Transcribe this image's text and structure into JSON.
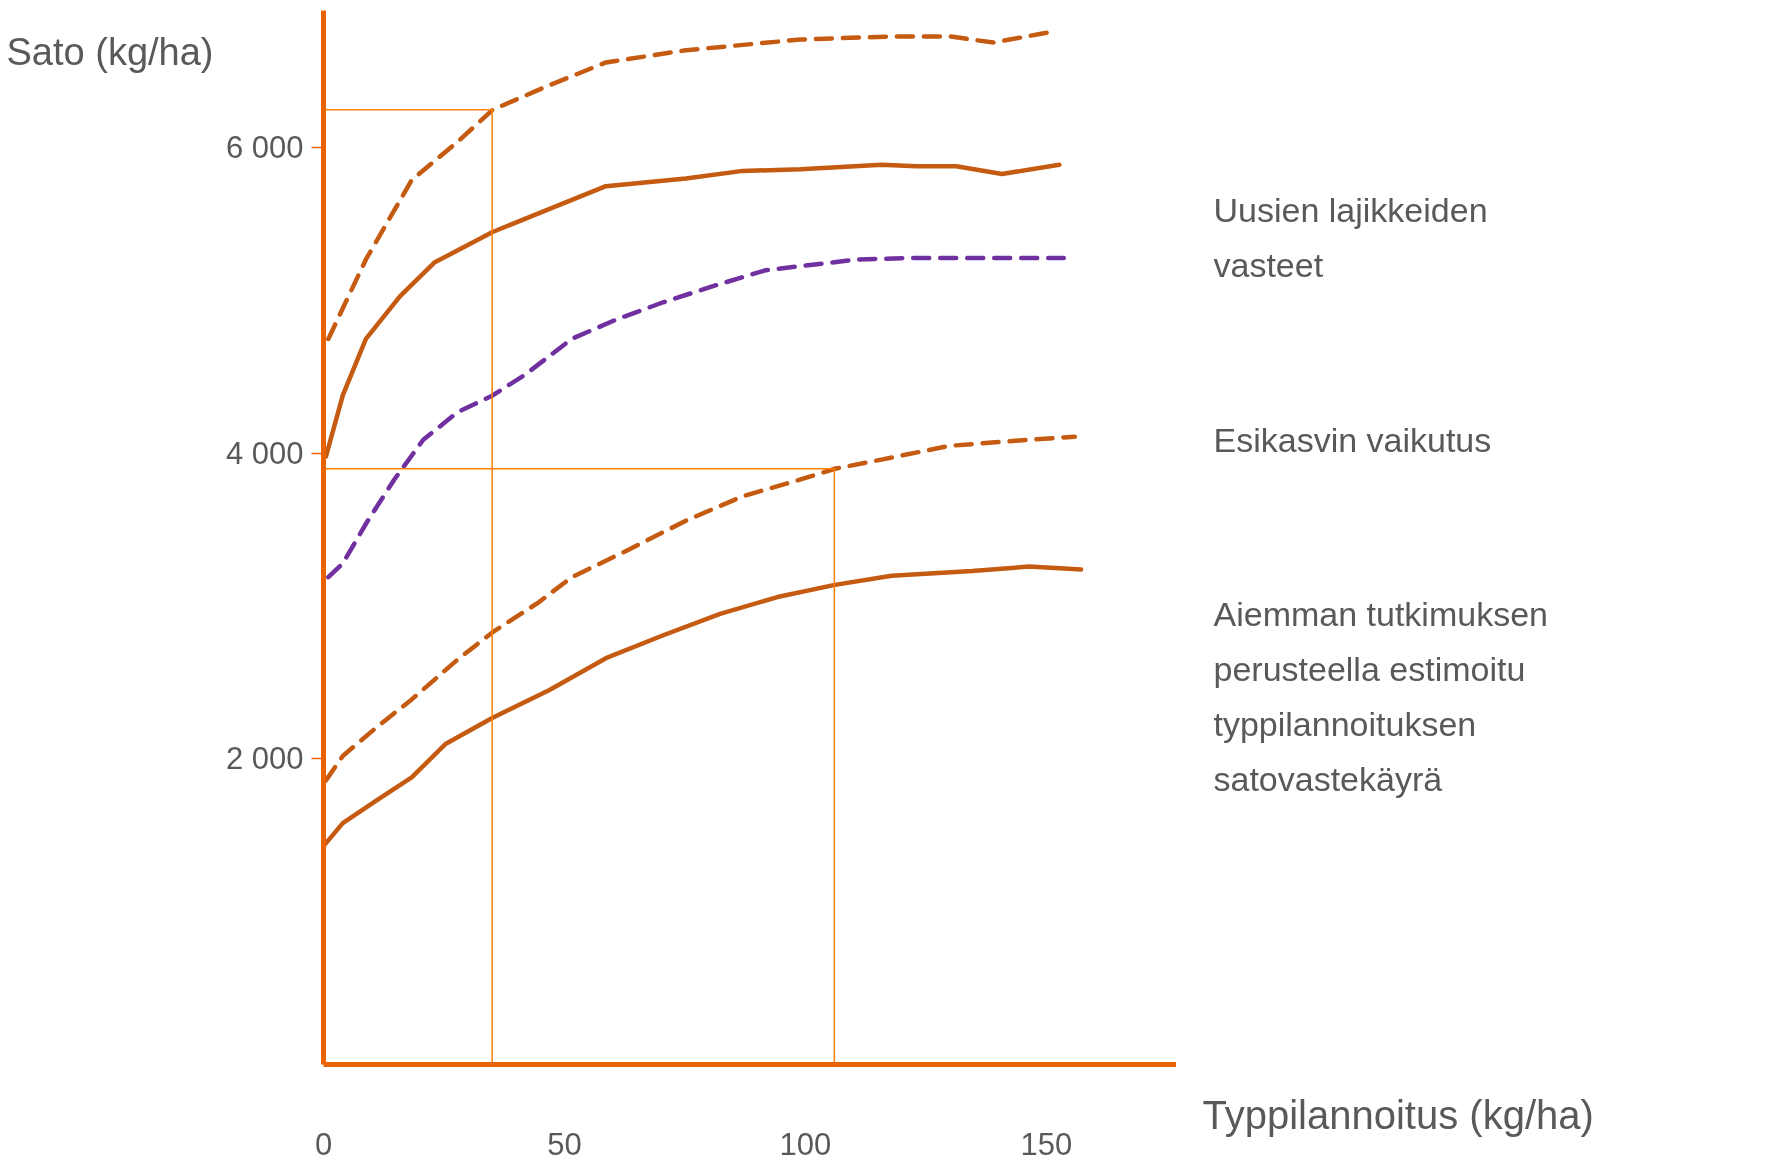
{
  "chart_data": {
    "type": "line",
    "xlabel": "Typpilannoitus (kg/ha)",
    "ylabel": "Sato (kg/ha)",
    "xlim": [
      0,
      177
    ],
    "ylim": [
      0,
      6900
    ],
    "xticks": [
      0,
      50,
      100,
      150
    ],
    "yticks": [
      {
        "value": 2000,
        "label": "2 000"
      },
      {
        "value": 4000,
        "label": "4 000"
      },
      {
        "value": 6000,
        "label": "6 000"
      }
    ],
    "series": [
      {
        "color": "#c55a11",
        "line_style": "dashed",
        "x": [
          1,
          8.8,
          18.3,
          27.8,
          35.1,
          46.8,
          58.6,
          75.2,
          99,
          118,
          130,
          139,
          151
        ],
        "values": [
          4750,
          5270,
          5790,
          6040,
          6250,
          6410,
          6560,
          6640,
          6710,
          6730,
          6730,
          6690,
          6760
        ]
      },
      {
        "color": "#c55a11",
        "line_style": "solid",
        "x": [
          0.5,
          4,
          8.8,
          15.9,
          23,
          35.1,
          46.8,
          58.6,
          75.2,
          87,
          99,
          115.8,
          123,
          131.3,
          140.8,
          152.7
        ],
        "values": [
          3980,
          4380,
          4750,
          5030,
          5250,
          5450,
          5600,
          5750,
          5800,
          5850,
          5860,
          5890,
          5880,
          5880,
          5830,
          5890
        ]
      },
      {
        "color": "#7030a0",
        "line_style": "dashed",
        "x": [
          1,
          4,
          8.8,
          14.7,
          20.7,
          27.8,
          35.1,
          42,
          51.5,
          61,
          70.5,
          82.3,
          91.8,
          110.8,
          122.7,
          153.6
        ],
        "values": [
          3190,
          3280,
          3540,
          3830,
          4090,
          4270,
          4380,
          4520,
          4750,
          4880,
          4990,
          5110,
          5200,
          5270,
          5280,
          5280
        ]
      },
      {
        "color": "#c55a11",
        "line_style": "dashed",
        "x": [
          0.5,
          4,
          11.1,
          18.3,
          27.8,
          35.1,
          44.4,
          51.5,
          63.3,
          75.2,
          87,
          99,
          106.1,
          115.8,
          129.9,
          146.5,
          155.9
        ],
        "values": [
          1860,
          2020,
          2210,
          2390,
          2650,
          2830,
          3020,
          3190,
          3370,
          3560,
          3720,
          3830,
          3900,
          3960,
          4050,
          4090,
          4110
        ]
      },
      {
        "color": "#c55a11",
        "line_style": "solid",
        "x": [
          0,
          4,
          11.1,
          18.3,
          25.4,
          35.1,
          46.8,
          58.6,
          70.5,
          82.3,
          94.2,
          106.1,
          117.9,
          134.6,
          146.5,
          157.2
        ],
        "values": [
          1430,
          1580,
          1730,
          1880,
          2100,
          2270,
          2450,
          2660,
          2810,
          2950,
          3060,
          3140,
          3200,
          3230,
          3260,
          3240
        ]
      },
      {
        "color": "#ff8000",
        "x": [
          0,
          35,
          35
        ],
        "values": [
          6250,
          6250,
          0
        ]
      },
      {
        "color": "#ff8000",
        "x": [
          0,
          106,
          106
        ],
        "values": [
          3900,
          3900,
          0
        ]
      }
    ],
    "annotations": [
      "Uusien lajikkeiden vasteet",
      "Esikasvin vaikutus",
      "Aiemman tutkimuksen perusteella estimoitu typpilannoituksen satovastekäyrä"
    ]
  }
}
